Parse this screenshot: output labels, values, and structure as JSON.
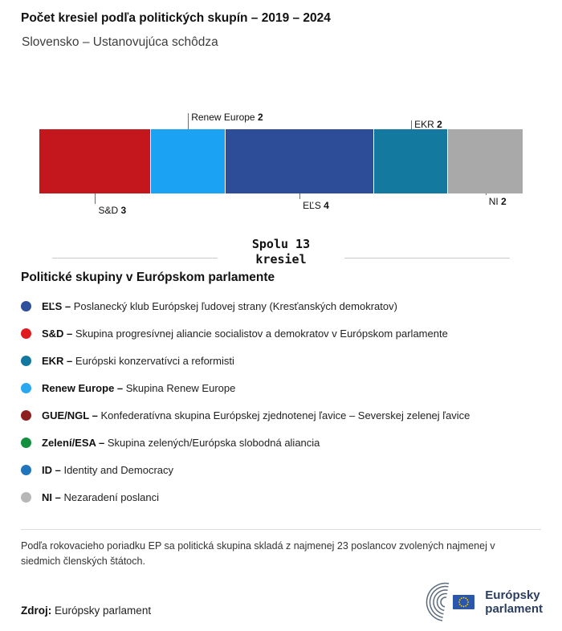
{
  "header": {
    "title": "Počet kresiel podľa politických skupín – 2019 – 2024",
    "subtitle": "Slovensko – Ustanovujúca schôdza"
  },
  "chart_data": {
    "type": "bar",
    "variant": "stacked-horizontal",
    "title": "Počet kresiel podľa politických skupín – 2019 – 2024",
    "subtitle": "Slovensko – Ustanovujúca schôdza",
    "total_seats": 13,
    "total_line1": "Spolu 13",
    "total_line2": "kresiel",
    "categories": [
      "S&D",
      "Renew Europe",
      "EĽS",
      "EKR",
      "NI"
    ],
    "values": [
      3,
      2,
      4,
      2,
      2
    ],
    "segments": [
      {
        "id": "sd",
        "name": "S&D",
        "seats": 3,
        "color": "#c3161d",
        "callout_side": "below",
        "callout_line": 13
      },
      {
        "id": "renew",
        "name": "Renew Europe",
        "seats": 2,
        "color": "#1ba2f2",
        "callout_side": "above",
        "callout_line": 20
      },
      {
        "id": "els",
        "name": "EĽS",
        "seats": 4,
        "color": "#2d4d99",
        "callout_side": "below",
        "callout_line": 7
      },
      {
        "id": "ekr",
        "name": "EKR",
        "seats": 2,
        "color": "#13799f",
        "callout_side": "above",
        "callout_line": 11
      },
      {
        "id": "ni",
        "name": "NI",
        "seats": 2,
        "color": "#a9a9a9",
        "callout_side": "below",
        "callout_line": 2
      }
    ]
  },
  "legend": {
    "heading": "Politické skupiny v Európskom parlamente",
    "items": [
      {
        "id": "els",
        "abbr": "EĽS",
        "desc": "Poslanecký klub Európskej ľudovej strany (Kresťanských demokratov)",
        "color": "#2e4f9b"
      },
      {
        "id": "sd",
        "abbr": "S&D",
        "desc": "Skupina progresívnej aliancie socialistov a demokratov v Európskom parlamente",
        "color": "#e01b20"
      },
      {
        "id": "ekr",
        "abbr": "EKR",
        "desc": "Európski konzervatívci a reformisti",
        "color": "#12789f"
      },
      {
        "id": "renew",
        "abbr": "Renew Europe",
        "desc": "Skupina Renew Europe",
        "color": "#29a8f0"
      },
      {
        "id": "gue",
        "abbr": "GUE/NGL",
        "desc": "Konfederatívna skupina Európskej zjednotenej ľavice – Severskej zelenej ľavice",
        "color": "#8e1f1f"
      },
      {
        "id": "greens",
        "abbr": "Zelení/ESA",
        "desc": "Skupina zelených/Európska slobodná aliancia",
        "color": "#11913e"
      },
      {
        "id": "id",
        "abbr": "ID",
        "desc": "Identity and Democracy",
        "color": "#2175bc"
      },
      {
        "id": "ni",
        "abbr": "NI",
        "desc": "Nezaradení poslanci",
        "color": "#b7b7b7"
      }
    ]
  },
  "footer": {
    "note": "Podľa rokovacieho poriadku EP sa politická skupina skladá z najmenej 23 poslancov zvolených najmenej v siedmich členských štátoch.",
    "source_label": "Zdroj:",
    "source": "Európsky parlament",
    "logo_line1": "Európsky",
    "logo_line2": "parlament"
  }
}
